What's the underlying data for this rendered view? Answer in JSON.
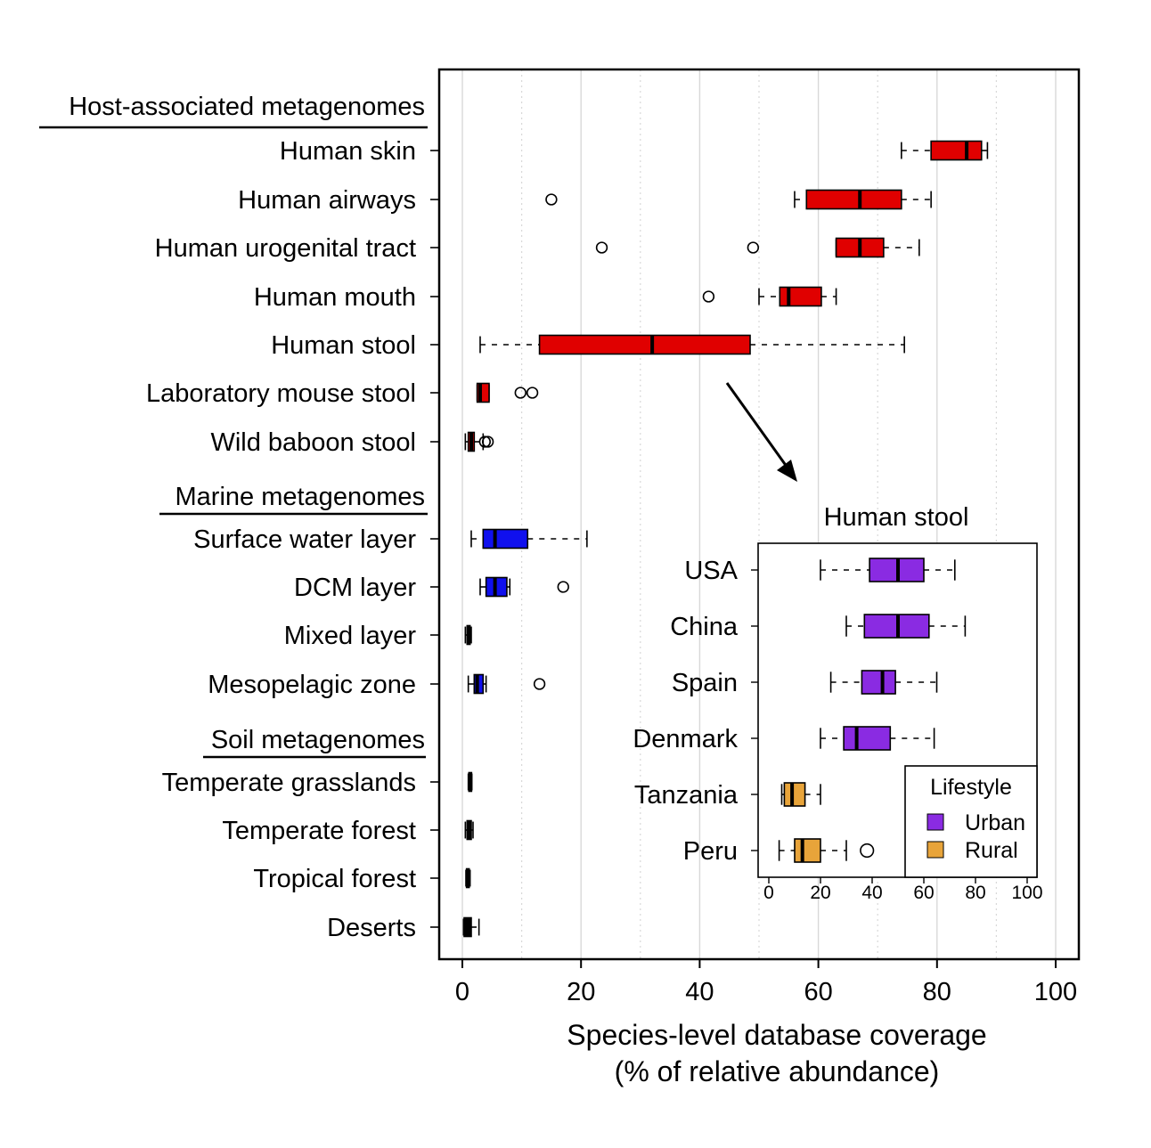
{
  "colors": {
    "host": "#e00000",
    "marine": "#1010ee",
    "soil": "#000000",
    "urban": "#8a2be2",
    "rural": "#e8a43a",
    "grid": "#d8d8d8"
  },
  "chart_data": [
    {
      "type": "boxplot",
      "orientation": "horizontal",
      "xlabel_line1": "Species-level database coverage",
      "xlabel_line2": "(% of relative abundance)",
      "xlim": [
        0,
        100
      ],
      "xticks": [
        "0",
        "20",
        "40",
        "60",
        "80",
        "100"
      ],
      "grid": "vertical",
      "groups": [
        {
          "label": "Host-associated metagenomes",
          "color": "#e00000",
          "categories": [
            {
              "name": "Human skin",
              "whisker_low": 74,
              "q1": 79,
              "median": 85,
              "q3": 87.5,
              "whisker_high": 88.5,
              "outliers": []
            },
            {
              "name": "Human airways",
              "whisker_low": 56,
              "q1": 58,
              "median": 67,
              "q3": 74,
              "whisker_high": 79,
              "outliers": [
                15
              ]
            },
            {
              "name": "Human urogenital tract",
              "whisker_low": 63,
              "q1": 63,
              "median": 67,
              "q3": 71,
              "whisker_high": 77,
              "outliers": [
                23.5,
                49
              ]
            },
            {
              "name": "Human mouth",
              "whisker_low": 50,
              "q1": 53.5,
              "median": 55,
              "q3": 60.5,
              "whisker_high": 63,
              "outliers": [
                41.5
              ]
            },
            {
              "name": "Human stool",
              "whisker_low": 3,
              "q1": 13,
              "median": 32,
              "q3": 48.5,
              "whisker_high": 74.5,
              "outliers": []
            },
            {
              "name": "Laboratory mouse stool",
              "whisker_low": 2.5,
              "q1": 2.5,
              "median": 3,
              "q3": 4.5,
              "whisker_high": 4.5,
              "outliers": [
                9.8,
                11.8
              ]
            },
            {
              "name": "Wild baboon stool",
              "whisker_low": 0.5,
              "q1": 1,
              "median": 1.5,
              "q3": 2,
              "whisker_high": 3.5,
              "outliers": [
                3.8,
                4.3
              ]
            }
          ]
        },
        {
          "label": "Marine metagenomes",
          "color": "#1010ee",
          "categories": [
            {
              "name": "Surface water layer",
              "whisker_low": 1.5,
              "q1": 3.5,
              "median": 5.5,
              "q3": 11,
              "whisker_high": 21,
              "outliers": []
            },
            {
              "name": "DCM layer",
              "whisker_low": 3,
              "q1": 4,
              "median": 5.5,
              "q3": 7.5,
              "whisker_high": 8,
              "outliers": [
                17
              ]
            },
            {
              "name": "Mixed layer",
              "whisker_low": 0.5,
              "q1": 0.8,
              "median": 1,
              "q3": 1.3,
              "whisker_high": 1.5,
              "outliers": []
            },
            {
              "name": "Mesopelagic zone",
              "whisker_low": 1,
              "q1": 2,
              "median": 2.5,
              "q3": 3.5,
              "whisker_high": 4,
              "outliers": [
                13
              ]
            }
          ]
        },
        {
          "label": "Soil metagenomes",
          "color": "#000000",
          "categories": [
            {
              "name": "Temperate grasslands",
              "whisker_low": 1,
              "q1": 1.1,
              "median": 1.3,
              "q3": 1.5,
              "whisker_high": 1.6,
              "outliers": []
            },
            {
              "name": "Temperate forest",
              "whisker_low": 0.5,
              "q1": 0.8,
              "median": 1.1,
              "q3": 1.5,
              "whisker_high": 1.8,
              "outliers": []
            },
            {
              "name": "Tropical forest",
              "whisker_low": 0.6,
              "q1": 0.7,
              "median": 0.9,
              "q3": 1.1,
              "whisker_high": 1.3,
              "outliers": []
            },
            {
              "name": "Deserts",
              "whisker_low": 0.2,
              "q1": 0.3,
              "median": 0.8,
              "q3": 1.5,
              "whisker_high": 2.8,
              "outliers": []
            }
          ]
        }
      ]
    },
    {
      "type": "boxplot",
      "orientation": "horizontal",
      "title": "Human stool",
      "xlim": [
        0,
        100
      ],
      "xticks": [
        "0",
        "20",
        "40",
        "60",
        "80",
        "100"
      ],
      "legend": {
        "title": "Lifestyle",
        "entries": [
          {
            "name": "Urban",
            "color": "#8a2be2"
          },
          {
            "name": "Rural",
            "color": "#e8a43a"
          }
        ],
        "position": "bottom-right"
      },
      "categories": [
        {
          "name": "USA",
          "lifestyle": "Urban",
          "whisker_low": 20,
          "q1": 39,
          "median": 50,
          "q3": 60,
          "whisker_high": 72,
          "outliers": []
        },
        {
          "name": "China",
          "lifestyle": "Urban",
          "whisker_low": 30,
          "q1": 37,
          "median": 50,
          "q3": 62,
          "whisker_high": 76,
          "outliers": []
        },
        {
          "name": "Spain",
          "lifestyle": "Urban",
          "whisker_low": 24,
          "q1": 36,
          "median": 44,
          "q3": 49,
          "whisker_high": 65,
          "outliers": []
        },
        {
          "name": "Denmark",
          "lifestyle": "Urban",
          "whisker_low": 20,
          "q1": 29,
          "median": 34,
          "q3": 47,
          "whisker_high": 64,
          "outliers": []
        },
        {
          "name": "Tanzania",
          "lifestyle": "Rural",
          "whisker_low": 5,
          "q1": 6,
          "median": 9,
          "q3": 14,
          "whisker_high": 20,
          "outliers": []
        },
        {
          "name": "Peru",
          "lifestyle": "Rural",
          "whisker_low": 4,
          "q1": 10,
          "median": 13,
          "q3": 20,
          "whisker_high": 30,
          "outliers": [
            38
          ]
        }
      ]
    }
  ]
}
